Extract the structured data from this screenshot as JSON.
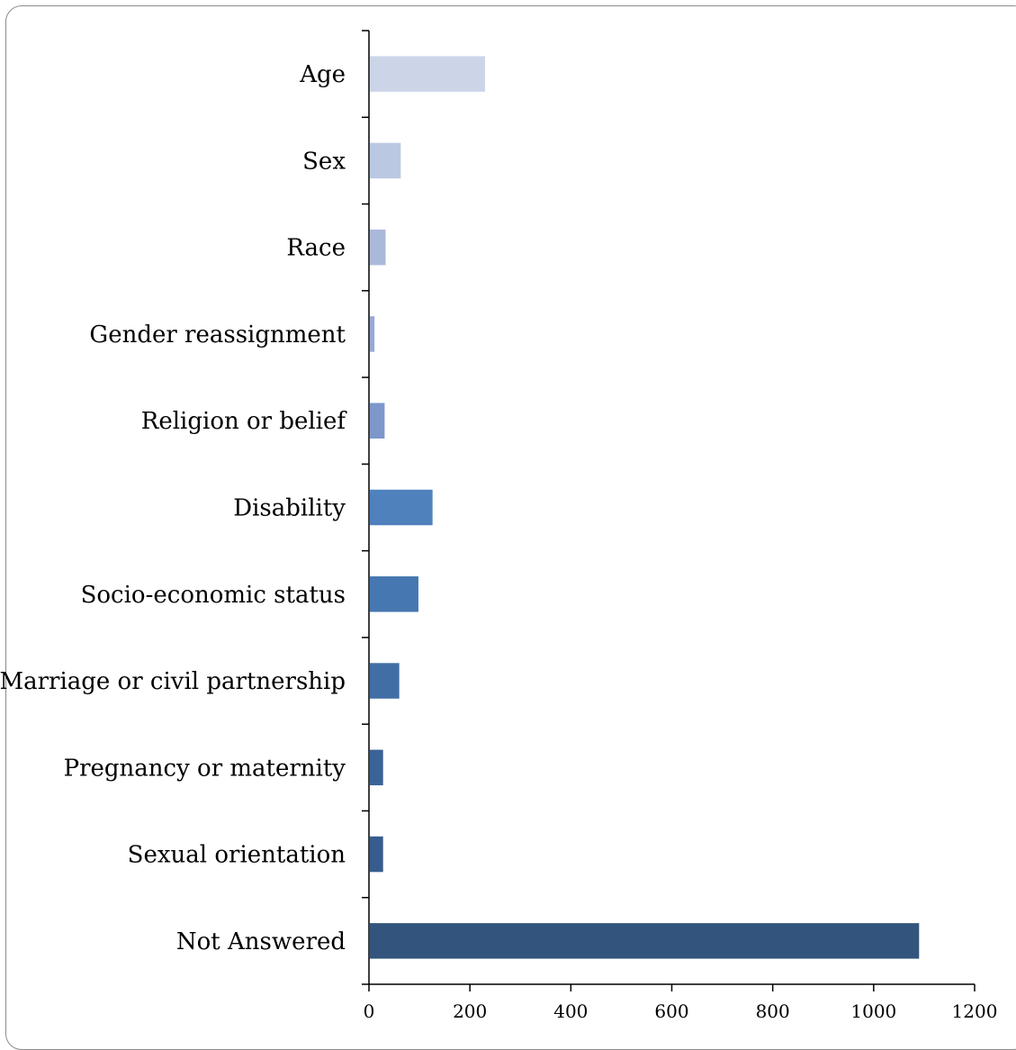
{
  "chart_data": {
    "type": "bar",
    "orientation": "horizontal",
    "categories": [
      "Age",
      "Sex",
      "Race",
      "Gender reassignment",
      "Religion or belief",
      "Disability",
      "Socio-economic status",
      "Marriage or civil partnership",
      "Pregnancy or maternity",
      "Sexual orientation",
      "Not Answered"
    ],
    "values": [
      230,
      63,
      33,
      11,
      31,
      126,
      98,
      60,
      28,
      28,
      1090
    ],
    "colors": [
      "#ccd5e8",
      "#bac8e2",
      "#aab8da",
      "#98aad3",
      "#7d97cb",
      "#4f81bd",
      "#4677b0",
      "#416ea5",
      "#3b6398",
      "#375c8d",
      "#33557d"
    ],
    "xlim": [
      0,
      1200
    ],
    "xticks": [
      0,
      200,
      400,
      600,
      800,
      1000,
      1200
    ],
    "grid": false,
    "title": "",
    "xlabel": "",
    "ylabel": ""
  }
}
